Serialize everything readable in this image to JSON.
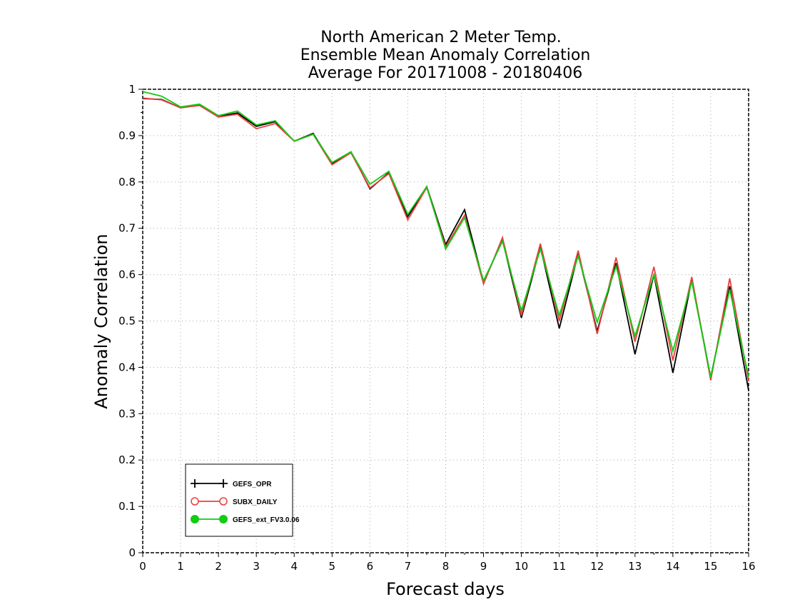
{
  "chart_data": {
    "type": "line",
    "title": [
      "North American 2 Meter Temp.",
      "Ensemble Mean Anomaly Correlation",
      "Average For 20171008 - 20180406"
    ],
    "xlabel": "Forecast days",
    "ylabel": "Anomaly Correlation",
    "xlim": [
      0,
      16
    ],
    "ylim": [
      0,
      1
    ],
    "x_ticks": [
      "0",
      "1",
      "2",
      "3",
      "4",
      "5",
      "6",
      "7",
      "8",
      "9",
      "10",
      "11",
      "12",
      "13",
      "14",
      "15",
      "16"
    ],
    "y_ticks": [
      "0",
      "0.1",
      "0.2",
      "0.3",
      "0.4",
      "0.5",
      "0.6",
      "0.7",
      "0.8",
      "0.9",
      "1"
    ],
    "grid": true,
    "legend_position": "bottom-left",
    "x": [
      0,
      0.5,
      1,
      1.5,
      2,
      2.5,
      3,
      3.5,
      4,
      4.5,
      5,
      5.5,
      6,
      6.5,
      7,
      7.5,
      8,
      8.5,
      9,
      9.5,
      10,
      10.5,
      11,
      11.5,
      12,
      12.5,
      13,
      13.5,
      14,
      14.5,
      15,
      15.5,
      16
    ],
    "series": [
      {
        "name": "GEFS_OPR",
        "color": "#000000",
        "marker": "plus",
        "values": [
          0.98,
          0.978,
          0.96,
          0.966,
          0.941,
          0.949,
          0.92,
          0.93,
          0.888,
          0.905,
          0.84,
          0.865,
          0.785,
          0.82,
          0.725,
          0.79,
          0.665,
          0.74,
          0.583,
          0.675,
          0.507,
          0.66,
          0.484,
          0.645,
          0.478,
          0.625,
          0.428,
          0.6,
          0.388,
          0.59,
          0.378,
          0.575,
          0.35
        ]
      },
      {
        "name": "SUBX_DAILY",
        "color": "#e8403f",
        "marker": "open-circle",
        "values": [
          0.981,
          0.977,
          0.96,
          0.965,
          0.94,
          0.946,
          0.915,
          0.926,
          0.888,
          0.903,
          0.837,
          0.863,
          0.787,
          0.818,
          0.718,
          0.788,
          0.66,
          0.728,
          0.58,
          0.68,
          0.512,
          0.667,
          0.5,
          0.652,
          0.472,
          0.637,
          0.455,
          0.617,
          0.415,
          0.595,
          0.372,
          0.592,
          0.37
        ]
      },
      {
        "name": "GEFS_ext_FV3.0.06",
        "color": "#11cc11",
        "marker": "filled-circle",
        "values": [
          0.995,
          0.985,
          0.962,
          0.968,
          0.943,
          0.953,
          0.923,
          0.932,
          0.888,
          0.903,
          0.842,
          0.865,
          0.795,
          0.823,
          0.73,
          0.79,
          0.655,
          0.723,
          0.587,
          0.672,
          0.522,
          0.655,
          0.512,
          0.64,
          0.497,
          0.618,
          0.467,
          0.6,
          0.435,
          0.585,
          0.378,
          0.568,
          0.38
        ]
      }
    ]
  }
}
